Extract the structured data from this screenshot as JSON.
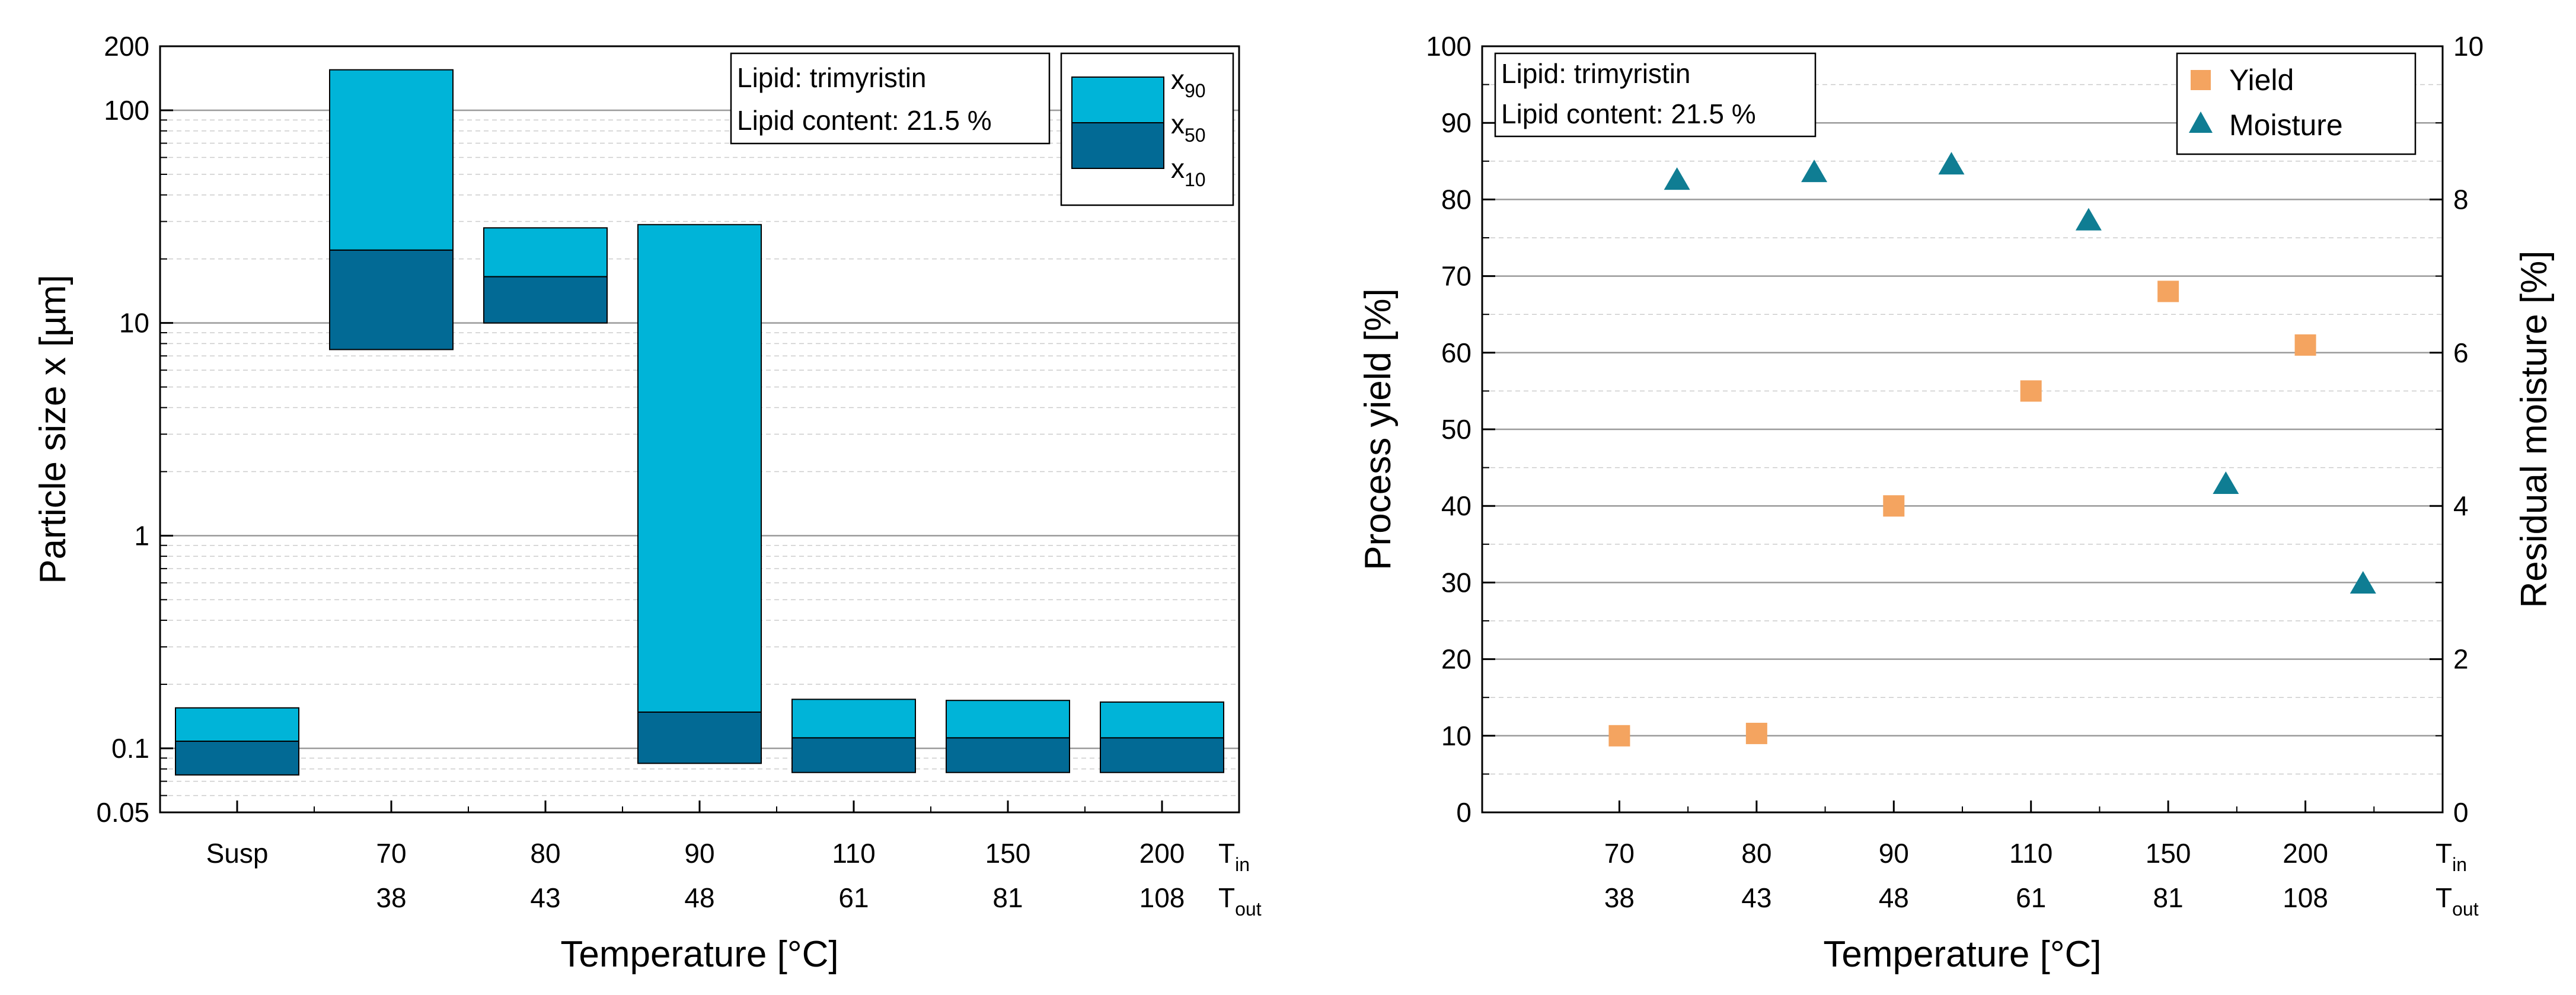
{
  "chart_data": [
    {
      "type": "bar",
      "subtype": "floating-stacked-log",
      "xlabel": "Temperature [°C]",
      "ylabel": "Particle size x [µm]",
      "yscale": "log",
      "ylim": [
        0.05,
        200
      ],
      "yticks": [
        "0.05",
        "0.1",
        "1",
        "10",
        "100",
        "200"
      ],
      "grid": "horizontal major and minor",
      "row_labels": {
        "tin": "T",
        "tin_sub": "in",
        "tout": "T",
        "tout_sub": "out"
      },
      "categories": [
        {
          "tin": "Susp",
          "tout": ""
        },
        {
          "tin": "70",
          "tout": "38"
        },
        {
          "tin": "80",
          "tout": "43"
        },
        {
          "tin": "90",
          "tout": "48"
        },
        {
          "tin": "110",
          "tout": "61"
        },
        {
          "tin": "150",
          "tout": "81"
        },
        {
          "tin": "200",
          "tout": "108"
        }
      ],
      "series": [
        {
          "name": "x10",
          "label": "x",
          "sub": "10",
          "values": [
            0.075,
            7.5,
            10.0,
            0.085,
            0.077,
            0.077,
            0.077
          ]
        },
        {
          "name": "x50",
          "label": "x",
          "sub": "50",
          "values": [
            0.108,
            22.0,
            16.5,
            0.148,
            0.112,
            0.112,
            0.112
          ]
        },
        {
          "name": "x90",
          "label": "x",
          "sub": "90",
          "values": [
            0.155,
            155.0,
            28.0,
            29.0,
            0.17,
            0.168,
            0.165
          ]
        }
      ],
      "colors": {
        "x90": "#00b4d8",
        "x50": "#026a95"
      },
      "annotation": [
        "Lipid: trimyristin",
        "Lipid content: 21.5 %"
      ],
      "legend_position": "top-right"
    },
    {
      "type": "scatter",
      "subtype": "dual-axis",
      "xlabel": "Temperature [°C]",
      "ylabel": "Process yield [%]",
      "y2label": "Residual moisture [%]",
      "ylim": [
        0,
        100
      ],
      "y2lim": [
        0,
        10
      ],
      "yticks": [
        0,
        10,
        20,
        30,
        40,
        50,
        60,
        70,
        80,
        90,
        100
      ],
      "y2ticks": [
        0,
        2,
        4,
        6,
        8,
        10
      ],
      "grid": "horizontal major and minor",
      "row_labels": {
        "tin": "T",
        "tin_sub": "in",
        "tout": "T",
        "tout_sub": "out"
      },
      "categories": [
        {
          "tin": "70",
          "tout": "38"
        },
        {
          "tin": "80",
          "tout": "43"
        },
        {
          "tin": "90",
          "tout": "48"
        },
        {
          "tin": "110",
          "tout": "61"
        },
        {
          "tin": "150",
          "tout": "81"
        },
        {
          "tin": "200",
          "tout": "108"
        }
      ],
      "series": [
        {
          "name": "Yield",
          "marker": "square",
          "axis": "left",
          "values": [
            10.0,
            10.3,
            40.0,
            55.0,
            68.0,
            61.0
          ]
        },
        {
          "name": "Moisture",
          "marker": "triangle",
          "axis": "right",
          "values": [
            8.25,
            8.35,
            8.45,
            7.72,
            4.28,
            2.98
          ]
        }
      ],
      "colors": {
        "Yield": "#f4a460",
        "Moisture": "#0f7d93"
      },
      "annotation": [
        "Lipid: trimyristin",
        "Lipid content: 21.5 %"
      ],
      "legend_position": "top-right"
    }
  ]
}
